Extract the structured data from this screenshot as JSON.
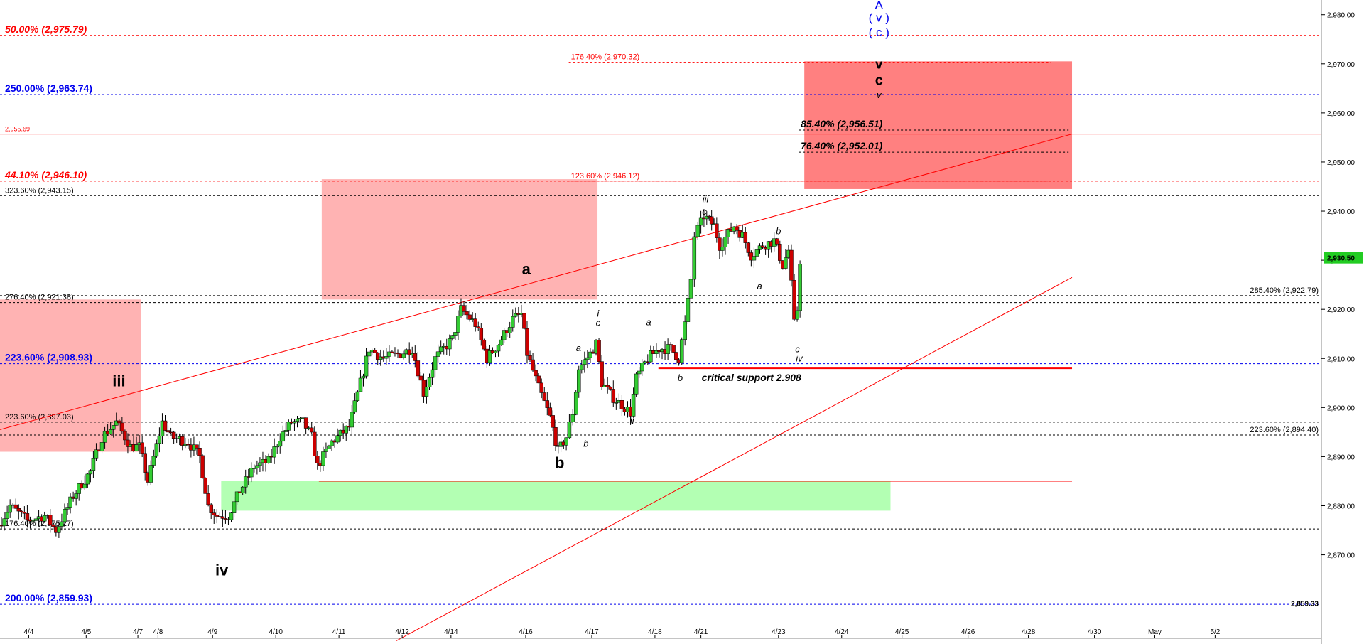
{
  "chart_data": {
    "type": "candlestick",
    "ylim": [
      2853,
      2983
    ],
    "xlim": [
      0,
      23
    ],
    "grid": false,
    "y_ticks": [
      "2,870.00",
      "2,880.00",
      "2,890.00",
      "2,900.00",
      "2,910.00",
      "2,920.00",
      "2,930.00",
      "2,940.00",
      "2,950.00",
      "2,960.00",
      "2,970.00",
      "2,980.00"
    ],
    "y_tick_values": [
      2870,
      2880,
      2890,
      2900,
      2910,
      2920,
      2930,
      2940,
      2950,
      2960,
      2970,
      2980
    ],
    "x_ticks": [
      {
        "label": "4/4",
        "x": 0.5
      },
      {
        "label": "4/5",
        "x": 1.5
      },
      {
        "label": "4/7",
        "x": 2.4
      },
      {
        "label": "4/8",
        "x": 2.75
      },
      {
        "label": "4/9",
        "x": 3.7
      },
      {
        "label": "4/10",
        "x": 4.8
      },
      {
        "label": "4/11",
        "x": 5.9
      },
      {
        "label": "4/12",
        "x": 7.0
      },
      {
        "label": "4/14",
        "x": 7.85
      },
      {
        "label": "4/16",
        "x": 9.15
      },
      {
        "label": "4/17",
        "x": 10.3
      },
      {
        "label": "4/18",
        "x": 11.4
      },
      {
        "label": "4/21",
        "x": 12.2
      },
      {
        "label": "4/23",
        "x": 13.55
      },
      {
        "label": "4/24",
        "x": 14.65
      },
      {
        "label": "4/25",
        "x": 15.7
      },
      {
        "label": "4/26",
        "x": 16.85
      },
      {
        "label": "4/28",
        "x": 17.9
      },
      {
        "label": "4/30",
        "x": 19.05
      },
      {
        "label": "May",
        "x": 20.1
      },
      {
        "label": "5/2",
        "x": 21.15
      }
    ],
    "last_price": {
      "label": "2,930.50",
      "value": 2930.5,
      "color": "#22cc22"
    },
    "bottom_price": {
      "label": "2,859.33",
      "value": 2859.33,
      "color": "#2a8a2a"
    },
    "levels": [
      {
        "label": "50.00% (2,975.79)",
        "value": 2975.79,
        "color": "#ff0000",
        "style": "dashed",
        "side": "left",
        "bold": true,
        "italic": true,
        "size": 14
      },
      {
        "label": "250.00% (2,963.74)",
        "value": 2963.74,
        "color": "#0000ee",
        "style": "dashed",
        "side": "left",
        "bold": true,
        "italic": false,
        "size": 14
      },
      {
        "label": "2,955.69",
        "value": 2955.69,
        "color": "#ff0000",
        "style": "solid",
        "side": "left",
        "bold": false,
        "italic": false,
        "size": 9
      },
      {
        "label": "44.10% (2,946.10)",
        "value": 2946.1,
        "color": "#ff0000",
        "style": "dashed",
        "side": "left",
        "bold": true,
        "italic": true,
        "size": 14
      },
      {
        "label": "323.60% (2,943.15)",
        "value": 2943.15,
        "color": "#000000",
        "style": "dashed",
        "side": "left",
        "bold": false,
        "italic": false,
        "size": 11
      },
      {
        "label": "276.40% (2,921.38)",
        "value": 2921.38,
        "color": "#000000",
        "style": "dashed",
        "side": "left",
        "bold": false,
        "italic": false,
        "size": 11
      },
      {
        "label": "223.60% (2,908.93)",
        "value": 2908.93,
        "color": "#0000ee",
        "style": "dashed",
        "side": "left",
        "bold": true,
        "italic": false,
        "size": 14
      },
      {
        "label": "223.60% (2,897.03)",
        "value": 2897.03,
        "color": "#000000",
        "style": "dashed",
        "side": "left",
        "bold": false,
        "italic": false,
        "size": 11
      },
      {
        "label": "176.40% (2,875.27)",
        "value": 2875.27,
        "color": "#000000",
        "style": "dashed",
        "side": "left",
        "bold": false,
        "italic": false,
        "size": 11
      },
      {
        "label": "200.00% (2,859.93)",
        "value": 2859.93,
        "color": "#0000ee",
        "style": "dashed",
        "side": "left",
        "bold": true,
        "italic": false,
        "size": 14
      },
      {
        "label": "285.40% (2,922.79)",
        "value": 2922.79,
        "color": "#000000",
        "style": "dashed",
        "side": "right",
        "bold": false,
        "italic": false,
        "size": 11
      },
      {
        "label": "223.60% (2,894.40)",
        "value": 2894.4,
        "color": "#000000",
        "style": "dashed",
        "side": "right",
        "bold": false,
        "italic": false,
        "size": 11
      }
    ],
    "zone_labels": [
      {
        "label": "176.40% (2,970.32)",
        "value": 2970.32,
        "x0": 9.9,
        "x1": 18.3,
        "color": "#ff0000"
      },
      {
        "label": "123.60% (2,946.12)",
        "value": 2946.12,
        "x0": 9.9,
        "x1": 18.3,
        "color": "#ff0000"
      },
      {
        "label": "85.40% (2,956.51)",
        "value": 2956.51,
        "x0": 13.9,
        "x1": 18.6,
        "color": "#000000"
      },
      {
        "label": "76.40% (2,952.01)",
        "value": 2952.01,
        "x0": 13.9,
        "x1": 18.6,
        "color": "#000000"
      }
    ],
    "boxes": [
      {
        "x0": 0.0,
        "x1": 2.45,
        "y0": 2891.0,
        "y1": 2922.0,
        "color": "#ffb3b3"
      },
      {
        "x0": 5.6,
        "x1": 10.4,
        "y0": 2922.0,
        "y1": 2946.5,
        "color": "#ffb3b3"
      },
      {
        "x0": 14.0,
        "x1": 18.66,
        "y0": 2944.5,
        "y1": 2970.5,
        "color": "#ff8080"
      },
      {
        "x0": 3.85,
        "x1": 15.5,
        "y0": 2879.0,
        "y1": 2885.0,
        "color": "#b3ffb3"
      }
    ],
    "lines": [
      {
        "x0": 0.0,
        "y0": 2895.5,
        "x1": 18.66,
        "y1": 2955.7,
        "color": "#ff0000"
      },
      {
        "x0": 6.9,
        "y0": 2852.5,
        "x1": 18.66,
        "y1": 2926.5,
        "color": "#ff0000"
      },
      {
        "x0": 11.46,
        "y0": 2908.0,
        "x1": 18.66,
        "y1": 2908.0,
        "color": "#ff0000",
        "width": 2
      },
      {
        "x0": 5.55,
        "y0": 2885.0,
        "x1": 18.66,
        "y1": 2885.0,
        "color": "#ff0000",
        "width": 1
      }
    ],
    "annotations": [
      {
        "text": "A",
        "x": 15.3,
        "y": 2981.2,
        "color": "#0000ee",
        "size": 17,
        "bold": false,
        "italic": false
      },
      {
        "text": "( v )",
        "x": 15.3,
        "y": 2978.6,
        "color": "#0000ee",
        "size": 17,
        "bold": false,
        "italic": false
      },
      {
        "text": "( c )",
        "x": 15.3,
        "y": 2975.6,
        "color": "#0000ee",
        "size": 17,
        "bold": false,
        "italic": false
      },
      {
        "text": "v",
        "x": 15.3,
        "y": 2969.0,
        "color": "#000000",
        "size": 18,
        "bold": true,
        "italic": false
      },
      {
        "text": "c",
        "x": 15.3,
        "y": 2965.7,
        "color": "#000000",
        "size": 20,
        "bold": true,
        "italic": false
      },
      {
        "text": "v",
        "x": 15.3,
        "y": 2963.0,
        "color": "#000000",
        "size": 13,
        "bold": false,
        "italic": true
      },
      {
        "text": "iii",
        "x": 2.07,
        "y": 2904.3,
        "color": "#000000",
        "size": 22,
        "bold": true,
        "italic": false
      },
      {
        "text": "iv",
        "x": 3.86,
        "y": 2865.8,
        "color": "#000000",
        "size": 22,
        "bold": true,
        "italic": false
      },
      {
        "text": "a",
        "x": 9.16,
        "y": 2927.1,
        "color": "#000000",
        "size": 22,
        "bold": true,
        "italic": false
      },
      {
        "text": "b",
        "x": 9.74,
        "y": 2887.7,
        "color": "#000000",
        "size": 22,
        "bold": true,
        "italic": false
      },
      {
        "text": "a",
        "x": 10.07,
        "y": 2911.5,
        "color": "#000000",
        "size": 13,
        "bold": false,
        "italic": true
      },
      {
        "text": "b",
        "x": 10.2,
        "y": 2892.0,
        "color": "#000000",
        "size": 13,
        "bold": false,
        "italic": true
      },
      {
        "text": "i",
        "x": 10.41,
        "y": 2918.5,
        "color": "#000000",
        "size": 13,
        "bold": false,
        "italic": true
      },
      {
        "text": "c",
        "x": 10.41,
        "y": 2916.6,
        "color": "#000000",
        "size": 13,
        "bold": false,
        "italic": true
      },
      {
        "text": "ii",
        "x": 11.0,
        "y": 2896.6,
        "color": "#000000",
        "size": 13,
        "bold": false,
        "italic": true
      },
      {
        "text": "a",
        "x": 11.29,
        "y": 2916.8,
        "color": "#000000",
        "size": 13,
        "bold": false,
        "italic": true
      },
      {
        "text": "b",
        "x": 11.84,
        "y": 2905.4,
        "color": "#000000",
        "size": 13,
        "bold": false,
        "italic": true
      },
      {
        "text": "iii",
        "x": 12.28,
        "y": 2941.8,
        "color": "#000000",
        "size": 13,
        "bold": false,
        "italic": true
      },
      {
        "text": "c",
        "x": 12.26,
        "y": 2939.3,
        "color": "#000000",
        "size": 13,
        "bold": false,
        "italic": true
      },
      {
        "text": "b",
        "x": 13.55,
        "y": 2935.3,
        "color": "#000000",
        "size": 13,
        "bold": false,
        "italic": true
      },
      {
        "text": "a",
        "x": 13.22,
        "y": 2924.1,
        "color": "#000000",
        "size": 13,
        "bold": false,
        "italic": true
      },
      {
        "text": "c",
        "x": 13.88,
        "y": 2911.3,
        "color": "#000000",
        "size": 13,
        "bold": false,
        "italic": true
      },
      {
        "text": "iv",
        "x": 13.91,
        "y": 2909.4,
        "color": "#000000",
        "size": 13,
        "bold": false,
        "italic": true
      },
      {
        "text": "critical support 2.908",
        "x": 13.08,
        "y": 2905.4,
        "color": "#000000",
        "size": 14,
        "bold": true,
        "italic": true
      }
    ],
    "series": [
      {
        "name": "",
        "anchors": [
          [
            0.0,
            2876
          ],
          [
            0.2,
            2880
          ],
          [
            0.5,
            2877
          ],
          [
            0.8,
            2878
          ],
          [
            1.0,
            2875
          ],
          [
            1.3,
            2882
          ],
          [
            1.6,
            2887
          ],
          [
            1.8,
            2894
          ],
          [
            2.05,
            2897
          ],
          [
            2.3,
            2892
          ],
          [
            2.45,
            2892
          ],
          [
            2.6,
            2885
          ],
          [
            2.85,
            2897
          ],
          [
            3.0,
            2894
          ],
          [
            3.3,
            2893
          ],
          [
            3.5,
            2890
          ],
          [
            3.65,
            2880
          ],
          [
            3.8,
            2878
          ],
          [
            4.0,
            2878
          ],
          [
            4.2,
            2883
          ],
          [
            4.45,
            2888
          ],
          [
            4.7,
            2889
          ],
          [
            4.9,
            2894
          ],
          [
            5.1,
            2897
          ],
          [
            5.3,
            2897
          ],
          [
            5.45,
            2894
          ],
          [
            5.55,
            2888
          ],
          [
            5.8,
            2893
          ],
          [
            6.1,
            2896
          ],
          [
            6.3,
            2905
          ],
          [
            6.45,
            2912
          ],
          [
            6.7,
            2910
          ],
          [
            7.0,
            2911
          ],
          [
            7.2,
            2912
          ],
          [
            7.4,
            2903
          ],
          [
            7.6,
            2910
          ],
          [
            7.9,
            2914
          ],
          [
            8.05,
            2920
          ],
          [
            8.3,
            2917
          ],
          [
            8.5,
            2910
          ],
          [
            8.7,
            2913
          ],
          [
            8.95,
            2918
          ],
          [
            9.1,
            2919
          ],
          [
            9.2,
            2911
          ],
          [
            9.4,
            2904
          ],
          [
            9.6,
            2898
          ],
          [
            9.74,
            2891
          ],
          [
            9.88,
            2894
          ],
          [
            10.0,
            2899
          ],
          [
            10.1,
            2908
          ],
          [
            10.3,
            2911
          ],
          [
            10.4,
            2913
          ],
          [
            10.5,
            2905
          ],
          [
            10.7,
            2902
          ],
          [
            10.9,
            2900
          ],
          [
            11.0,
            2899
          ],
          [
            11.1,
            2906
          ],
          [
            11.3,
            2910
          ],
          [
            11.5,
            2912
          ],
          [
            11.7,
            2912
          ],
          [
            11.84,
            2910
          ],
          [
            11.95,
            2917
          ],
          [
            12.05,
            2926
          ],
          [
            12.12,
            2935
          ],
          [
            12.28,
            2939
          ],
          [
            12.45,
            2937
          ],
          [
            12.55,
            2933
          ],
          [
            12.8,
            2937
          ],
          [
            12.95,
            2935
          ],
          [
            13.1,
            2931
          ],
          [
            13.3,
            2933
          ],
          [
            13.5,
            2934
          ],
          [
            13.65,
            2929
          ],
          [
            13.75,
            2932
          ],
          [
            13.8,
            2925
          ],
          [
            13.85,
            2917
          ],
          [
            13.9,
            2920
          ],
          [
            13.95,
            2930
          ]
        ]
      }
    ]
  }
}
